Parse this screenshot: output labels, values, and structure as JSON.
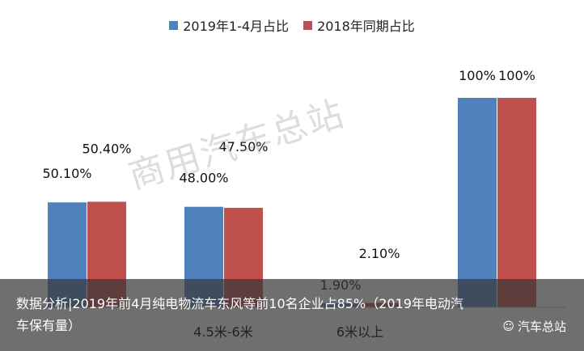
{
  "chart_data": {
    "type": "bar",
    "categories": [
      "",
      "4.5米-6米",
      "6米以上",
      ""
    ],
    "series": [
      {
        "name": "2019年1-4月占比",
        "color": "#4f81bd",
        "values": [
          50.1,
          48.0,
          1.9,
          100
        ],
        "labels": [
          "50.10%",
          "48.00%",
          "1.90%",
          "100%"
        ]
      },
      {
        "name": "2018年同期占比",
        "color": "#c0504d",
        "values": [
          50.4,
          47.5,
          2.1,
          100
        ],
        "labels": [
          "50.40%",
          "47.50%",
          "2.10%",
          "100%"
        ]
      }
    ],
    "ylim": [
      0,
      100
    ],
    "legend_position": "top",
    "grid": false
  },
  "watermark": "商用汽车总站",
  "caption": {
    "text": "数据分析|2019年前4月纯电物流车东风等前10名企业占85%（2019年电动汽车保有量）",
    "brand": "汽车总站",
    "brand_icon": "wechat-icon"
  }
}
